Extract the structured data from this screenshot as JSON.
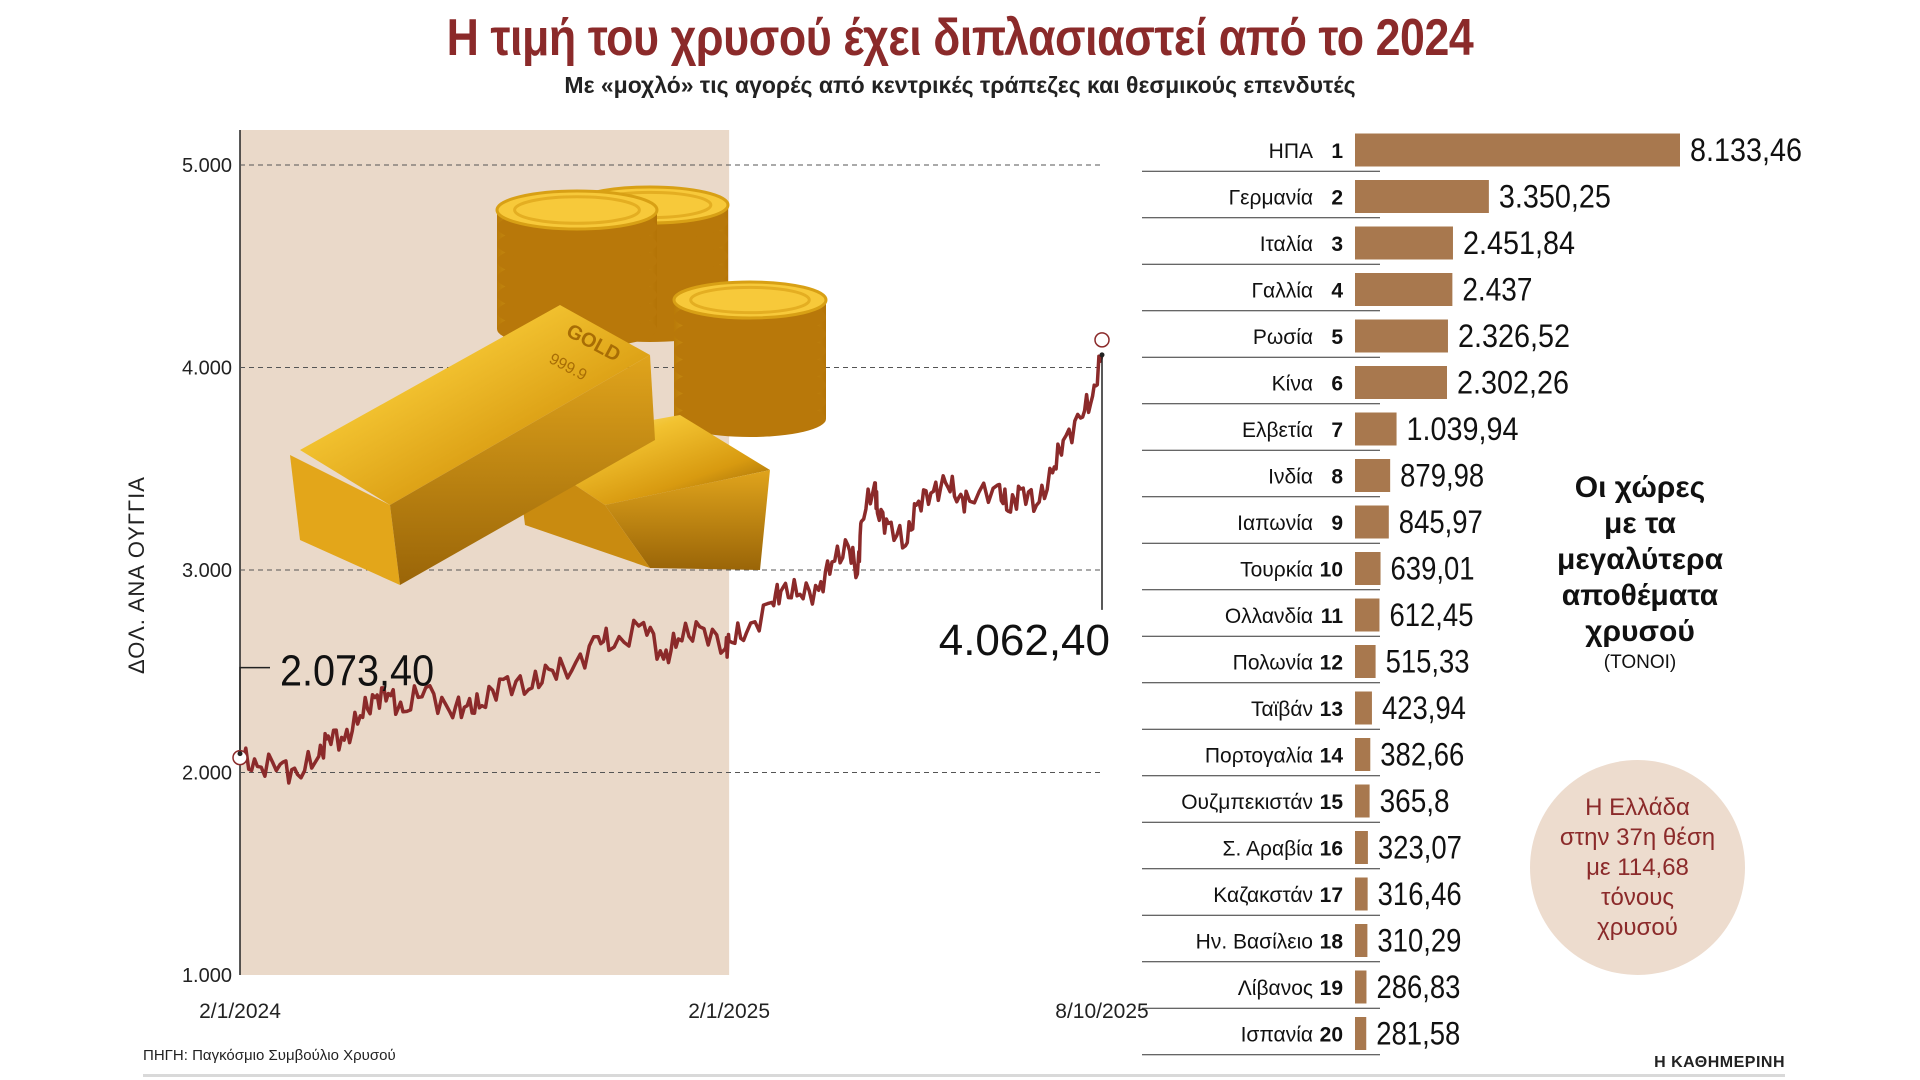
{
  "header": {
    "title": "Η τιμή του χρυσού έχει διπλασιαστεί από το 2024",
    "subtitle": "Με «μοχλό» τις αγορές από κεντρικές τράπεζες και θεσμικούς επενδυτές"
  },
  "colors": {
    "title": "#8b2a2a",
    "line": "#8b2a2a",
    "shade": "#ead9c9",
    "bar": "#a8784e",
    "note_bg": "#eddcce"
  },
  "illustration": {
    "icon": "gold-bars-and-coins-icon",
    "bar_text": "GOLD",
    "bar_purity": "999.9"
  },
  "chart_data": [
    {
      "type": "line",
      "ylabel": "ΔΟΛ. ΑΝΑ ΟΥΓΓΙΑ",
      "ylim": [
        1000,
        5000
      ],
      "yticks": [
        "1.000",
        "2.000",
        "3.000",
        "4.000",
        "5.000"
      ],
      "ytick_values": [
        1000,
        2000,
        3000,
        4000,
        5000
      ],
      "xticks": [
        "2/1/2024",
        "2/1/2025",
        "8/10/2025"
      ],
      "x_start": "2024-01-02",
      "x_end": "2025-10-08",
      "shaded_range": [
        "2024-01-02",
        "2025-01-02"
      ],
      "grid": "horizontal-dashed",
      "annotations": [
        {
          "date": "2024-01-02",
          "value": 2073.4,
          "label": "2.073,40"
        },
        {
          "date": "2025-10-08",
          "value": 4062.4,
          "label": "4.062,40"
        }
      ],
      "series": [
        {
          "x": [
            "2024-01-02",
            "2024-01-15",
            "2024-02-01",
            "2024-02-14",
            "2024-03-01",
            "2024-03-08",
            "2024-03-20",
            "2024-04-01",
            "2024-04-12",
            "2024-04-22",
            "2024-05-03",
            "2024-05-20",
            "2024-06-07",
            "2024-06-20",
            "2024-07-01",
            "2024-07-17",
            "2024-08-05",
            "2024-08-20",
            "2024-09-06",
            "2024-09-26",
            "2024-10-08",
            "2024-10-30",
            "2024-11-14",
            "2024-11-25",
            "2024-12-11",
            "2024-12-30",
            "2025-01-02",
            "2025-01-15",
            "2025-02-03",
            "2025-02-11",
            "2025-02-24",
            "2025-03-10",
            "2025-03-20",
            "2025-04-01",
            "2025-04-08",
            "2025-04-11",
            "2025-04-21",
            "2025-04-23",
            "2025-05-01",
            "2025-05-14",
            "2025-05-22",
            "2025-06-02",
            "2025-06-13",
            "2025-06-23",
            "2025-07-01",
            "2025-07-22",
            "2025-07-30",
            "2025-08-08",
            "2025-08-20",
            "2025-09-01",
            "2025-09-09",
            "2025-09-22",
            "2025-10-01",
            "2025-10-08"
          ],
          "values": [
            2073.4,
            2030,
            2040,
            1990,
            2080,
            2180,
            2160,
            2280,
            2370,
            2390,
            2300,
            2420,
            2300,
            2330,
            2330,
            2460,
            2410,
            2510,
            2500,
            2670,
            2620,
            2740,
            2560,
            2660,
            2720,
            2610,
            2650,
            2690,
            2840,
            2910,
            2880,
            2900,
            3040,
            3120,
            2980,
            3240,
            3430,
            3280,
            3230,
            3120,
            3320,
            3380,
            3430,
            3360,
            3340,
            3420,
            3290,
            3400,
            3320,
            3480,
            3640,
            3750,
            3860,
            4062.4
          ]
        }
      ]
    },
    {
      "type": "bar",
      "orientation": "horizontal",
      "title": "Οι χώρες με τα μεγαλύτερα αποθέματα χρυσού",
      "unit": "(ΤΟΝΟΙ)",
      "categories": [
        "ΗΠΑ",
        "Γερμανία",
        "Ιταλία",
        "Γαλλία",
        "Ρωσία",
        "Κίνα",
        "Ελβετία",
        "Ινδία",
        "Ιαπωνία",
        "Τουρκία",
        "Ολλανδία",
        "Πολωνία",
        "Ταϊβάν",
        "Πορτογαλία",
        "Ουζμπεκιστάν",
        "Σ. Αραβία",
        "Καζακστάν",
        "Ην. Βασίλειο",
        "Λίβανος",
        "Ισπανία"
      ],
      "ranks": [
        "1",
        "2",
        "3",
        "4",
        "5",
        "6",
        "7",
        "8",
        "9",
        "10",
        "11",
        "12",
        "13",
        "14",
        "15",
        "16",
        "17",
        "18",
        "19",
        "20"
      ],
      "values": [
        8133.46,
        3350.25,
        2451.84,
        2437,
        2326.52,
        2302.26,
        1039.94,
        879.98,
        845.97,
        639.01,
        612.45,
        515.33,
        423.94,
        382.66,
        365.8,
        323.07,
        316.46,
        310.29,
        286.83,
        281.58
      ],
      "value_labels": [
        "8.133,46",
        "3.350,25",
        "2.451,84",
        "2.437",
        "2.326,52",
        "2.302,26",
        "1.039,94",
        "879,98",
        "845,97",
        "639,01",
        "612,45",
        "515,33",
        "423,94",
        "382,66",
        "365,8",
        "323,07",
        "316,46",
        "310,29",
        "286,83",
        "281,58"
      ]
    }
  ],
  "side_panel": {
    "title_lines": [
      "Οι χώρες",
      "με τα",
      "μεγαλύτερα",
      "αποθέματα",
      "χρυσού"
    ],
    "unit": "(ΤΟΝΟΙ)"
  },
  "note": {
    "lines": [
      "Η Ελλάδα",
      "στην 37η θέση",
      "με 114,68",
      "τόνους",
      "χρυσού"
    ]
  },
  "footer": {
    "source": "ΠΗΓΗ: Παγκόσμιο Συμβούλιο Χρυσού",
    "brand": "Η ΚΑΘΗΜΕΡΙΝΗ"
  }
}
